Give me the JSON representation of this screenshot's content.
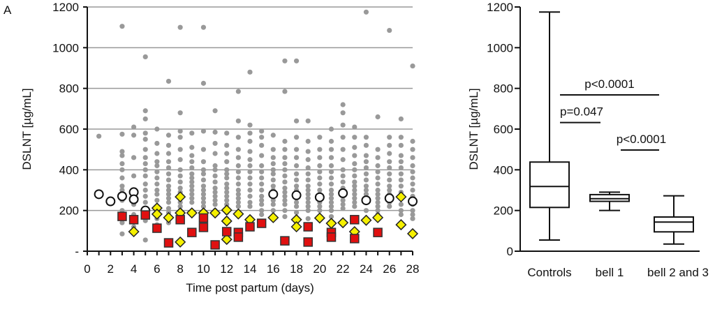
{
  "chart_data": [
    {
      "type": "scatter",
      "panel_label": "A",
      "xlabel": "Time post partum (days)",
      "ylabel": "DSLNT [µg/mL]",
      "xlim": [
        0,
        28
      ],
      "ylim": [
        0,
        1200
      ],
      "x_tick_labels": [
        "0",
        "2",
        "4",
        "6",
        "8",
        "10",
        "12",
        "14",
        "16",
        "18",
        "20",
        "22",
        "24",
        "26",
        "28"
      ],
      "y_tick_labels": [
        "-",
        "200",
        "400",
        "600",
        "800",
        "1000",
        "1200"
      ],
      "y_tick_values": [
        0,
        200,
        400,
        600,
        800,
        1000,
        1200
      ],
      "grid": "horizontal",
      "colors": {
        "gray": "#999999",
        "red": "#e01010",
        "yellow": "#f5f000",
        "open": "#ffffff"
      },
      "series": [
        {
          "name": "controls-gray-dots",
          "marker": "dot",
          "points": {
            "1": [
              565
            ],
            "3": [
              1105,
              575,
              490,
              470,
              430,
              400,
              360,
              320,
              300,
              250,
              200,
              140,
              85
            ],
            "4": [
              610,
              570,
              460,
              370,
              230,
              180,
              150,
              120,
              100
            ],
            "5": [
              955,
              690,
              650,
              580,
              550,
              500,
              460,
              430,
              400,
              370,
              330,
              300,
              270,
              240,
              210,
              150,
              55
            ],
            "6": [
              600,
              530,
              480,
              440,
              420,
              390,
              360,
              330,
              300,
              280,
              250,
              220,
              200,
              160,
              130
            ],
            "7": [
              835,
              570,
              520,
              480,
              440,
              410,
              380,
              350,
              320,
              300,
              280,
              260,
              240,
              210,
              190,
              170,
              140
            ],
            "8": [
              1100,
              680,
              590,
              560,
              500,
              450,
              400,
              370,
              340,
              310,
              290,
              260,
              240,
              220,
              200
            ],
            "9": [
              580,
              510,
              470,
              440,
              410,
              380,
              360,
              340,
              320,
              300,
              280,
              260,
              240
            ],
            "10": [
              1100,
              825,
              590,
              500,
              440,
              400,
              380,
              350,
              320,
              300,
              280,
              260,
              240,
              220,
              190,
              170
            ],
            "11": [
              690,
              585,
              530,
              480,
              420,
              400,
              370,
              340,
              310,
              290,
              270,
              250,
              230,
              200
            ],
            "12": [
              580,
              520,
              480,
              440,
              400,
              380,
              360,
              330,
              310,
              290,
              270,
              250,
              230,
              210,
              190,
              160
            ],
            "13": [
              785,
              640,
              560,
              500,
              460,
              420,
              390,
              360,
              330,
              300,
              280,
              260,
              240,
              220
            ],
            "14": [
              880,
              620,
              580,
              540,
              490,
              450,
              420,
              390,
              360,
              330,
              300,
              270,
              240,
              220
            ],
            "15": [
              590,
              560,
              520,
              470,
              420,
              390,
              360,
              330,
              300,
              270,
              250,
              230,
              200,
              180
            ],
            "16": [
              570,
              500,
              460,
              430,
              400,
              380,
              350,
              320,
              300,
              270,
              250,
              230,
              200
            ],
            "17": [
              935,
              785,
              540,
              500,
              460,
              430,
              400,
              370,
              340,
              310,
              290,
              270,
              250,
              230,
              200,
              170
            ],
            "18": [
              935,
              640,
              560,
              500,
              460,
              420,
              380,
              350,
              320,
              300,
              280,
              260,
              240,
              220,
              190
            ],
            "19": [
              640,
              540,
              490,
              450,
              410,
              380,
              350,
              320,
              300,
              280,
              260,
              240,
              220,
              200,
              160
            ],
            "20": [
              560,
              500,
              460,
              420,
              390,
              360,
              330,
              300,
              280,
              260,
              240,
              220,
              200,
              170
            ],
            "21": [
              600,
              540,
              500,
              460,
              420,
              390,
              360,
              330,
              300,
              280,
              260,
              240,
              220,
              200,
              170
            ],
            "22": [
              720,
              680,
              620,
              560,
              500,
              450,
              400,
              370,
              340,
              310,
              290,
              270,
              250,
              230,
              210
            ],
            "23": [
              610,
              560,
              510,
              470,
              430,
              400,
              370,
              340,
              320,
              300,
              280,
              260,
              240,
              220
            ],
            "24": [
              1175,
              560,
              520,
              470,
              440,
              410,
              380,
              350,
              320,
              300,
              280,
              260,
              240,
              200
            ],
            "25": [
              660,
              500,
              460,
              420,
              390,
              360,
              330,
              300,
              280,
              260,
              240,
              220,
              200,
              180
            ],
            "26": [
              1085,
              560,
              520,
              480,
              440,
              410,
              380,
              350,
              320,
              300,
              280,
              260,
              240,
              220
            ],
            "27": [
              650,
              560,
              520,
              470,
              440,
              410,
              380,
              350,
              320,
              290,
              260,
              230,
              200,
              180
            ],
            "28": [
              910,
              540,
              500,
              460,
              420,
              390,
              360,
              330,
              300,
              270,
              250,
              230,
              200,
              180,
              160
            ]
          }
        },
        {
          "name": "open-circles",
          "marker": "circle",
          "points": [
            [
              1,
              280
            ],
            [
              2,
              245
            ],
            [
              3,
              270
            ],
            [
              4,
              290
            ],
            [
              4,
              255
            ],
            [
              5,
              200
            ],
            [
              16,
              280
            ],
            [
              18,
              275
            ],
            [
              20,
              265
            ],
            [
              22,
              285
            ],
            [
              24,
              250
            ],
            [
              26,
              260
            ],
            [
              28,
              245
            ]
          ]
        },
        {
          "name": "yellow-diamonds",
          "marker": "diamond",
          "points": [
            [
              4,
              96
            ],
            [
              6,
              212
            ],
            [
              6,
              182
            ],
            [
              7,
              165
            ],
            [
              8,
              267
            ],
            [
              8,
              188
            ],
            [
              8,
              45
            ],
            [
              9,
              188
            ],
            [
              10,
              188
            ],
            [
              11,
              188
            ],
            [
              12,
              202
            ],
            [
              12,
              148
            ],
            [
              12,
              58
            ],
            [
              13,
              183
            ],
            [
              14,
              155
            ],
            [
              16,
              165
            ],
            [
              18,
              155
            ],
            [
              18,
              120
            ],
            [
              20,
              163
            ],
            [
              21,
              137
            ],
            [
              22,
              140
            ],
            [
              23,
              96
            ],
            [
              24,
              152
            ],
            [
              25,
              165
            ],
            [
              27,
              267
            ],
            [
              27,
              130
            ],
            [
              28,
              86
            ]
          ]
        },
        {
          "name": "red-squares",
          "marker": "square",
          "points": [
            [
              3,
              171
            ],
            [
              4,
              155
            ],
            [
              5,
              178
            ],
            [
              6,
              113
            ],
            [
              7,
              41
            ],
            [
              8,
              155
            ],
            [
              9,
              92
            ],
            [
              10,
              163
            ],
            [
              10,
              117
            ],
            [
              11,
              31
            ],
            [
              12,
              96
            ],
            [
              13,
              92
            ],
            [
              13,
              69
            ],
            [
              14,
              120
            ],
            [
              15,
              137
            ],
            [
              17,
              51
            ],
            [
              19,
              120
            ],
            [
              19,
              45
            ],
            [
              21,
              92
            ],
            [
              21,
              69
            ],
            [
              23,
              155
            ],
            [
              23,
              62
            ],
            [
              25,
              92
            ]
          ]
        }
      ]
    },
    {
      "type": "box",
      "ylabel": "DSLNT [µg/mL]",
      "ylim": [
        0,
        1200
      ],
      "y_tick_labels": [
        "0",
        "200",
        "400",
        "600",
        "800",
        "1000",
        "1200"
      ],
      "y_tick_values": [
        0,
        200,
        400,
        600,
        800,
        1000,
        1200
      ],
      "categories": [
        "Controls",
        "bell 1",
        "bell 2 and 3"
      ],
      "boxes": [
        {
          "min": 55,
          "q1": 215,
          "median": 318,
          "q3": 438,
          "max": 1175
        },
        {
          "min": 200,
          "q1": 245,
          "median": 258,
          "q3": 278,
          "max": 290
        },
        {
          "min": 35,
          "q1": 95,
          "median": 143,
          "q3": 168,
          "max": 272
        }
      ],
      "annotations": [
        {
          "text": "p<0.0001",
          "from": 0,
          "to": 2,
          "y": 768
        },
        {
          "text": "p=0.047",
          "from": 0,
          "to": 1,
          "y": 632
        },
        {
          "text": "p<0.0001",
          "from": 1,
          "to": 2,
          "y": 497
        }
      ]
    }
  ]
}
